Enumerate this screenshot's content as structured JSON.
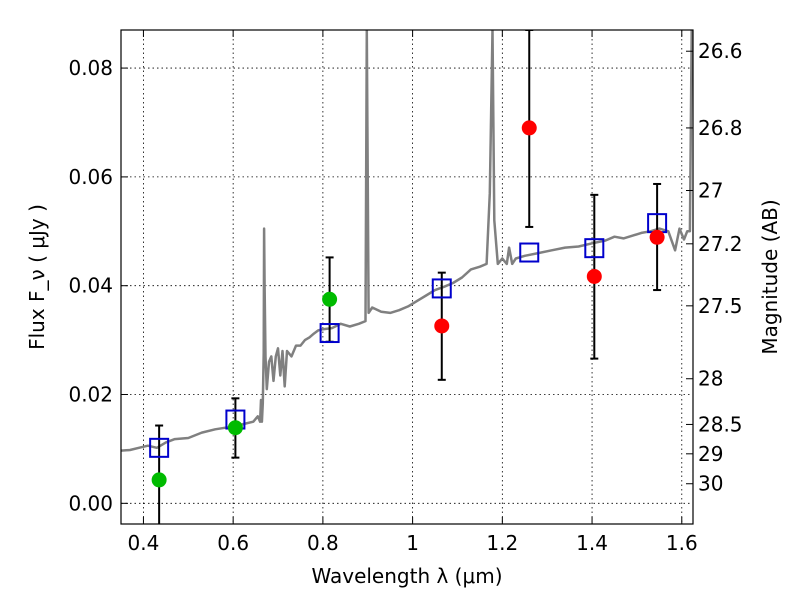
{
  "chart_data": {
    "type": "scatter",
    "xlabel": "Wavelength  λ (μm)",
    "ylabel": "Flux  F_ν  ( μJy )",
    "ylabel_right": "Magnitude (AB)",
    "xlim": [
      0.35,
      1.625
    ],
    "ylim": [
      -0.0038,
      0.087
    ],
    "x_ticks": [
      0.4,
      0.6,
      0.8,
      1.0,
      1.2,
      1.4,
      1.6
    ],
    "x_tick_labels": [
      "0.4",
      "0.6",
      "0.8",
      "1",
      "1.2",
      "1.4",
      "1.6"
    ],
    "y_ticks": [
      0.0,
      0.02,
      0.04,
      0.06,
      0.08
    ],
    "y_tick_labels": [
      "0.00",
      "0.02",
      "0.04",
      "0.06",
      "0.08"
    ],
    "right_ticks": [
      {
        "flux": 0.0831,
        "label": "26.6"
      },
      {
        "flux": 0.069,
        "label": "26.8"
      },
      {
        "flux": 0.0575,
        "label": "27"
      },
      {
        "flux": 0.0477,
        "label": "27.2"
      },
      {
        "flux": 0.0363,
        "label": "27.5"
      },
      {
        "flux": 0.0229,
        "label": "28"
      },
      {
        "flux": 0.0145,
        "label": "28.5"
      },
      {
        "flux": 0.0091,
        "label": "29"
      },
      {
        "flux": 0.0036,
        "label": "30"
      }
    ],
    "grid": true,
    "colors": {
      "spectrum": "#808080",
      "model": "#0000cc",
      "detection": "#ff0000",
      "optical": "#00bb00",
      "errorbar": "#000000"
    },
    "spectrum": [
      [
        0.35,
        0.0097
      ],
      [
        0.37,
        0.0098
      ],
      [
        0.39,
        0.0102
      ],
      [
        0.41,
        0.0106
      ],
      [
        0.43,
        0.0102
      ],
      [
        0.45,
        0.0112
      ],
      [
        0.47,
        0.0118
      ],
      [
        0.5,
        0.012
      ],
      [
        0.53,
        0.013
      ],
      [
        0.56,
        0.0136
      ],
      [
        0.59,
        0.014
      ],
      [
        0.62,
        0.0145
      ],
      [
        0.645,
        0.015
      ],
      [
        0.655,
        0.016
      ],
      [
        0.66,
        0.015
      ],
      [
        0.662,
        0.019
      ],
      [
        0.664,
        0.015
      ],
      [
        0.666,
        0.0184
      ],
      [
        0.668,
        0.0276
      ],
      [
        0.669,
        0.0505
      ],
      [
        0.67,
        0.04
      ],
      [
        0.672,
        0.027
      ],
      [
        0.675,
        0.021
      ],
      [
        0.68,
        0.026
      ],
      [
        0.685,
        0.027
      ],
      [
        0.69,
        0.0225
      ],
      [
        0.695,
        0.027
      ],
      [
        0.7,
        0.0285
      ],
      [
        0.705,
        0.0235
      ],
      [
        0.71,
        0.028
      ],
      [
        0.715,
        0.0215
      ],
      [
        0.72,
        0.028
      ],
      [
        0.73,
        0.027
      ],
      [
        0.74,
        0.029
      ],
      [
        0.75,
        0.029
      ],
      [
        0.76,
        0.03
      ],
      [
        0.77,
        0.0305
      ],
      [
        0.78,
        0.0312
      ],
      [
        0.79,
        0.0318
      ],
      [
        0.8,
        0.032
      ],
      [
        0.82,
        0.0322
      ],
      [
        0.84,
        0.033
      ],
      [
        0.86,
        0.0325
      ],
      [
        0.88,
        0.033
      ],
      [
        0.895,
        0.0335
      ],
      [
        0.898,
        0.087
      ],
      [
        0.902,
        0.035
      ],
      [
        0.91,
        0.036
      ],
      [
        0.93,
        0.0352
      ],
      [
        0.95,
        0.035
      ],
      [
        0.97,
        0.0355
      ],
      [
        0.99,
        0.0362
      ],
      [
        1.01,
        0.0372
      ],
      [
        1.03,
        0.0382
      ],
      [
        1.05,
        0.0392
      ],
      [
        1.07,
        0.0398
      ],
      [
        1.09,
        0.0405
      ],
      [
        1.11,
        0.0415
      ],
      [
        1.13,
        0.043
      ],
      [
        1.15,
        0.0435
      ],
      [
        1.165,
        0.044
      ],
      [
        1.172,
        0.057
      ],
      [
        1.178,
        0.087
      ],
      [
        1.182,
        0.052
      ],
      [
        1.19,
        0.044
      ],
      [
        1.2,
        0.045
      ],
      [
        1.21,
        0.044
      ],
      [
        1.215,
        0.047
      ],
      [
        1.222,
        0.044
      ],
      [
        1.23,
        0.045
      ],
      [
        1.25,
        0.0455
      ],
      [
        1.28,
        0.046
      ],
      [
        1.31,
        0.0465
      ],
      [
        1.34,
        0.047
      ],
      [
        1.37,
        0.0472
      ],
      [
        1.4,
        0.0478
      ],
      [
        1.43,
        0.0483
      ],
      [
        1.45,
        0.049
      ],
      [
        1.47,
        0.0487
      ],
      [
        1.49,
        0.0492
      ],
      [
        1.51,
        0.0497
      ],
      [
        1.53,
        0.05
      ],
      [
        1.55,
        0.0505
      ],
      [
        1.57,
        0.05
      ],
      [
        1.585,
        0.0465
      ],
      [
        1.595,
        0.0505
      ],
      [
        1.605,
        0.0485
      ],
      [
        1.612,
        0.05
      ],
      [
        1.618,
        0.05
      ],
      [
        1.622,
        0.087
      ]
    ],
    "model_points": [
      {
        "x": 0.435,
        "y": 0.0102
      },
      {
        "x": 0.605,
        "y": 0.0154
      },
      {
        "x": 0.815,
        "y": 0.0313
      },
      {
        "x": 1.065,
        "y": 0.0395
      },
      {
        "x": 1.26,
        "y": 0.0461
      },
      {
        "x": 1.405,
        "y": 0.0469
      },
      {
        "x": 1.545,
        "y": 0.0515
      }
    ],
    "detections": [
      {
        "x": 0.435,
        "y": 0.0043,
        "yerr_low": -0.004,
        "yerr_high": 0.0143,
        "color_key": "optical"
      },
      {
        "x": 0.605,
        "y": 0.0139,
        "yerr_low": 0.0084,
        "yerr_high": 0.0193,
        "color_key": "optical"
      },
      {
        "x": 0.815,
        "y": 0.0375,
        "yerr_low": 0.0297,
        "yerr_high": 0.0452,
        "color_key": "optical"
      },
      {
        "x": 1.065,
        "y": 0.0326,
        "yerr_low": 0.0227,
        "yerr_high": 0.0424,
        "color_key": "detection"
      },
      {
        "x": 1.26,
        "y": 0.069,
        "yerr_low": 0.0508,
        "yerr_high": 0.087,
        "color_key": "detection"
      },
      {
        "x": 1.405,
        "y": 0.0417,
        "yerr_low": 0.0266,
        "yerr_high": 0.0567,
        "color_key": "detection"
      },
      {
        "x": 1.545,
        "y": 0.0489,
        "yerr_low": 0.0392,
        "yerr_high": 0.0587,
        "color_key": "detection"
      }
    ]
  }
}
